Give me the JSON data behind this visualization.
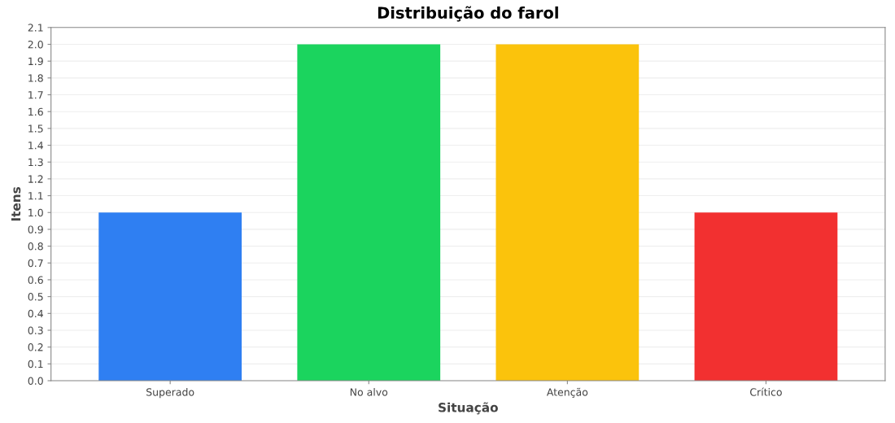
{
  "chart_data": {
    "type": "bar",
    "title": "Distribuição do farol",
    "xlabel": "Situação",
    "ylabel": "Itens",
    "categories": [
      "Superado",
      "No alvo",
      "Atenção",
      "Crítico"
    ],
    "values": [
      1.0,
      2.0,
      2.0,
      1.0
    ],
    "colors": [
      "#2f7ff2",
      "#1bd45e",
      "#fbc30c",
      "#f23030"
    ],
    "ylim": [
      0,
      2.1
    ],
    "yticks": [
      {
        "value": 0,
        "label": "0.0"
      },
      0.1,
      0.2,
      0.3,
      0.4,
      0.5,
      0.6,
      0.7,
      0.8,
      0.9,
      {
        "value": 1,
        "label": "1.0"
      },
      1.1,
      1.2,
      1.3,
      1.4,
      1.5,
      1.6,
      1.7,
      1.8,
      1.9,
      {
        "value": 2,
        "label": "2.0"
      },
      2.1
    ],
    "grid": "y"
  }
}
